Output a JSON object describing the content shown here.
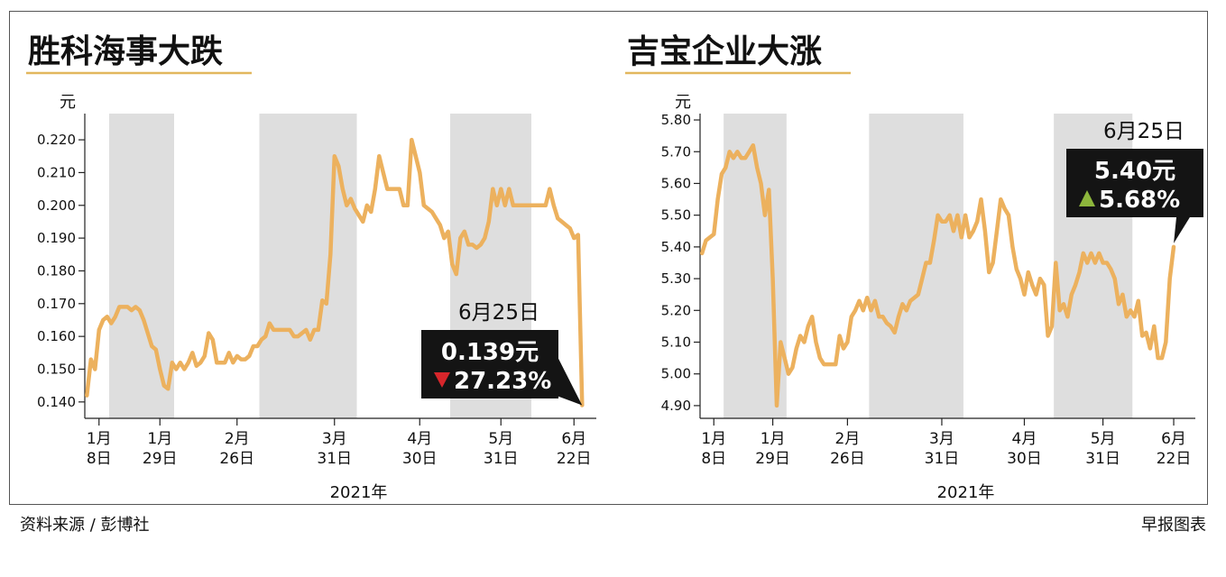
{
  "footer": {
    "source": "资料来源 / 彭博社",
    "credit": "早报图表"
  },
  "colors": {
    "line": "#ecb15e",
    "shade": "#dedede",
    "down": "#d7262b",
    "up": "#8db63c",
    "callout_bg": "#141414",
    "rule": "#e2b75e"
  },
  "chart_data": [
    {
      "type": "line",
      "title": "胜科海事大跌",
      "ylabel": "元",
      "xlabel": "2021年",
      "ylim": [
        0.135,
        0.228
      ],
      "yticks": [
        "0.140",
        "0.150",
        "0.160",
        "0.170",
        "0.180",
        "0.190",
        "0.200",
        "0.210",
        "0.220"
      ],
      "xticks": [
        {
          "i": 3,
          "m": "1月",
          "d": "8日"
        },
        {
          "i": 18,
          "m": "1月",
          "d": "29日"
        },
        {
          "i": 37,
          "m": "2月",
          "d": "26日"
        },
        {
          "i": 61,
          "m": "3月",
          "d": "31日"
        },
        {
          "i": 82,
          "m": "4月",
          "d": "30日"
        },
        {
          "i": 102,
          "m": "5月",
          "d": "31日"
        },
        {
          "i": 120,
          "m": "6月",
          "d": "22日"
        }
      ],
      "shaded": [
        [
          6,
          22
        ],
        [
          43,
          67
        ],
        [
          90,
          110
        ]
      ],
      "n": 126,
      "values": [
        [
          0,
          0.142
        ],
        [
          1,
          0.153
        ],
        [
          2,
          0.15
        ],
        [
          3,
          0.162
        ],
        [
          4,
          0.165
        ],
        [
          5,
          0.166
        ],
        [
          6,
          0.164
        ],
        [
          7,
          0.166
        ],
        [
          8,
          0.169
        ],
        [
          9,
          0.169
        ],
        [
          10,
          0.169
        ],
        [
          11,
          0.168
        ],
        [
          12,
          0.169
        ],
        [
          13,
          0.168
        ],
        [
          14,
          0.165
        ],
        [
          15,
          0.161
        ],
        [
          16,
          0.157
        ],
        [
          17,
          0.156
        ],
        [
          18,
          0.15
        ],
        [
          19,
          0.145
        ],
        [
          20,
          0.144
        ],
        [
          21,
          0.152
        ],
        [
          22,
          0.15
        ],
        [
          23,
          0.152
        ],
        [
          24,
          0.15
        ],
        [
          25,
          0.152
        ],
        [
          26,
          0.155
        ],
        [
          27,
          0.151
        ],
        [
          28,
          0.152
        ],
        [
          29,
          0.154
        ],
        [
          30,
          0.161
        ],
        [
          31,
          0.159
        ],
        [
          32,
          0.152
        ],
        [
          33,
          0.152
        ],
        [
          34,
          0.152
        ],
        [
          35,
          0.155
        ],
        [
          36,
          0.152
        ],
        [
          37,
          0.154
        ],
        [
          38,
          0.153
        ],
        [
          39,
          0.153
        ],
        [
          40,
          0.154
        ],
        [
          41,
          0.157
        ],
        [
          42,
          0.157
        ],
        [
          43,
          0.159
        ],
        [
          44,
          0.16
        ],
        [
          45,
          0.164
        ],
        [
          46,
          0.162
        ],
        [
          47,
          0.162
        ],
        [
          48,
          0.162
        ],
        [
          49,
          0.162
        ],
        [
          50,
          0.162
        ],
        [
          51,
          0.16
        ],
        [
          52,
          0.16
        ],
        [
          53,
          0.161
        ],
        [
          54,
          0.162
        ],
        [
          55,
          0.159
        ],
        [
          56,
          0.162
        ],
        [
          57,
          0.162
        ],
        [
          58,
          0.171
        ],
        [
          59,
          0.17
        ],
        [
          60,
          0.185
        ],
        [
          61,
          0.215
        ],
        [
          62,
          0.212
        ],
        [
          63,
          0.205
        ],
        [
          64,
          0.2
        ],
        [
          65,
          0.202
        ],
        [
          66,
          0.199
        ],
        [
          67,
          0.197
        ],
        [
          68,
          0.195
        ],
        [
          69,
          0.2
        ],
        [
          70,
          0.198
        ],
        [
          71,
          0.205
        ],
        [
          72,
          0.215
        ],
        [
          73,
          0.21
        ],
        [
          74,
          0.205
        ],
        [
          75,
          0.205
        ],
        [
          76,
          0.205
        ],
        [
          77,
          0.205
        ],
        [
          78,
          0.2
        ],
        [
          79,
          0.2
        ],
        [
          80,
          0.22
        ],
        [
          81,
          0.215
        ],
        [
          82,
          0.21
        ],
        [
          83,
          0.2
        ],
        [
          84,
          0.199
        ],
        [
          85,
          0.198
        ],
        [
          86,
          0.196
        ],
        [
          87,
          0.194
        ],
        [
          88,
          0.19
        ],
        [
          89,
          0.192
        ],
        [
          90,
          0.182
        ],
        [
          91,
          0.179
        ],
        [
          92,
          0.19
        ],
        [
          93,
          0.192
        ],
        [
          94,
          0.188
        ],
        [
          95,
          0.188
        ],
        [
          96,
          0.187
        ],
        [
          97,
          0.188
        ],
        [
          98,
          0.19
        ],
        [
          99,
          0.195
        ],
        [
          100,
          0.205
        ],
        [
          101,
          0.2
        ],
        [
          102,
          0.205
        ],
        [
          103,
          0.2
        ],
        [
          104,
          0.205
        ],
        [
          105,
          0.2
        ],
        [
          106,
          0.2
        ],
        [
          107,
          0.2
        ],
        [
          108,
          0.2
        ],
        [
          109,
          0.2
        ],
        [
          110,
          0.2
        ],
        [
          111,
          0.2
        ],
        [
          112,
          0.2
        ],
        [
          113,
          0.2
        ],
        [
          114,
          0.205
        ],
        [
          115,
          0.2
        ],
        [
          116,
          0.196
        ],
        [
          117,
          0.195
        ],
        [
          118,
          0.194
        ],
        [
          119,
          0.193
        ],
        [
          120,
          0.19
        ],
        [
          121,
          0.191
        ],
        [
          122,
          0.139
        ]
      ],
      "annotation": {
        "date": "6月25日",
        "price": "0.139元",
        "change": "27.23%",
        "direction": "down"
      }
    },
    {
      "type": "line",
      "title": "吉宝企业大涨",
      "ylabel": "元",
      "xlabel": "2021年",
      "ylim": [
        4.86,
        5.82
      ],
      "yticks": [
        "4.90",
        "5.00",
        "5.10",
        "5.20",
        "5.30",
        "5.40",
        "5.50",
        "5.60",
        "5.70",
        "5.80"
      ],
      "xticks": [
        {
          "i": 3,
          "m": "1月",
          "d": "8日"
        },
        {
          "i": 18,
          "m": "1月",
          "d": "29日"
        },
        {
          "i": 37,
          "m": "2月",
          "d": "26日"
        },
        {
          "i": 61,
          "m": "3月",
          "d": "31日"
        },
        {
          "i": 82,
          "m": "4月",
          "d": "30日"
        },
        {
          "i": 102,
          "m": "5月",
          "d": "31日"
        },
        {
          "i": 120,
          "m": "6月",
          "d": "22日"
        }
      ],
      "shaded": [
        [
          6,
          22
        ],
        [
          43,
          67
        ],
        [
          90,
          110
        ]
      ],
      "n": 126,
      "values": [
        [
          0,
          5.38
        ],
        [
          1,
          5.42
        ],
        [
          2,
          5.43
        ],
        [
          3,
          5.44
        ],
        [
          4,
          5.55
        ],
        [
          5,
          5.63
        ],
        [
          6,
          5.65
        ],
        [
          7,
          5.7
        ],
        [
          8,
          5.68
        ],
        [
          9,
          5.7
        ],
        [
          10,
          5.68
        ],
        [
          11,
          5.68
        ],
        [
          12,
          5.7
        ],
        [
          13,
          5.72
        ],
        [
          14,
          5.65
        ],
        [
          15,
          5.6
        ],
        [
          16,
          5.5
        ],
        [
          17,
          5.58
        ],
        [
          18,
          5.3
        ],
        [
          19,
          4.9
        ],
        [
          20,
          5.1
        ],
        [
          21,
          5.05
        ],
        [
          22,
          5.0
        ],
        [
          23,
          5.02
        ],
        [
          24,
          5.08
        ],
        [
          25,
          5.12
        ],
        [
          26,
          5.1
        ],
        [
          27,
          5.15
        ],
        [
          28,
          5.18
        ],
        [
          29,
          5.1
        ],
        [
          30,
          5.05
        ],
        [
          31,
          5.03
        ],
        [
          32,
          5.03
        ],
        [
          33,
          5.03
        ],
        [
          34,
          5.03
        ],
        [
          35,
          5.12
        ],
        [
          36,
          5.08
        ],
        [
          37,
          5.1
        ],
        [
          38,
          5.18
        ],
        [
          39,
          5.2
        ],
        [
          40,
          5.23
        ],
        [
          41,
          5.2
        ],
        [
          42,
          5.24
        ],
        [
          43,
          5.2
        ],
        [
          44,
          5.23
        ],
        [
          45,
          5.18
        ],
        [
          46,
          5.18
        ],
        [
          47,
          5.16
        ],
        [
          48,
          5.15
        ],
        [
          49,
          5.13
        ],
        [
          50,
          5.18
        ],
        [
          51,
          5.22
        ],
        [
          52,
          5.2
        ],
        [
          53,
          5.23
        ],
        [
          54,
          5.24
        ],
        [
          55,
          5.25
        ],
        [
          56,
          5.3
        ],
        [
          57,
          5.35
        ],
        [
          58,
          5.35
        ],
        [
          59,
          5.42
        ],
        [
          60,
          5.5
        ],
        [
          61,
          5.48
        ],
        [
          62,
          5.48
        ],
        [
          63,
          5.5
        ],
        [
          64,
          5.45
        ],
        [
          65,
          5.5
        ],
        [
          66,
          5.43
        ],
        [
          67,
          5.5
        ],
        [
          68,
          5.43
        ],
        [
          69,
          5.45
        ],
        [
          70,
          5.48
        ],
        [
          71,
          5.55
        ],
        [
          72,
          5.45
        ],
        [
          73,
          5.32
        ],
        [
          74,
          5.35
        ],
        [
          75,
          5.45
        ],
        [
          76,
          5.55
        ],
        [
          77,
          5.52
        ],
        [
          78,
          5.5
        ],
        [
          79,
          5.4
        ],
        [
          80,
          5.33
        ],
        [
          81,
          5.3
        ],
        [
          82,
          5.25
        ],
        [
          83,
          5.32
        ],
        [
          84,
          5.28
        ],
        [
          85,
          5.25
        ],
        [
          86,
          5.3
        ],
        [
          87,
          5.28
        ],
        [
          88,
          5.12
        ],
        [
          89,
          5.15
        ],
        [
          90,
          5.35
        ],
        [
          91,
          5.2
        ],
        [
          92,
          5.22
        ],
        [
          93,
          5.18
        ],
        [
          94,
          5.25
        ],
        [
          95,
          5.28
        ],
        [
          96,
          5.32
        ],
        [
          97,
          5.38
        ],
        [
          98,
          5.35
        ],
        [
          99,
          5.38
        ],
        [
          100,
          5.35
        ],
        [
          101,
          5.38
        ],
        [
          102,
          5.35
        ],
        [
          103,
          5.35
        ],
        [
          104,
          5.33
        ],
        [
          105,
          5.3
        ],
        [
          106,
          5.22
        ],
        [
          107,
          5.25
        ],
        [
          108,
          5.18
        ],
        [
          109,
          5.2
        ],
        [
          110,
          5.18
        ],
        [
          111,
          5.23
        ],
        [
          112,
          5.12
        ],
        [
          113,
          5.13
        ],
        [
          114,
          5.08
        ],
        [
          115,
          5.15
        ],
        [
          116,
          5.05
        ],
        [
          117,
          5.05
        ],
        [
          118,
          5.1
        ],
        [
          119,
          5.3
        ],
        [
          120,
          5.4
        ]
      ],
      "annotation": {
        "date": "6月25日",
        "price": "5.40元",
        "change": "5.68%",
        "direction": "up"
      }
    }
  ]
}
